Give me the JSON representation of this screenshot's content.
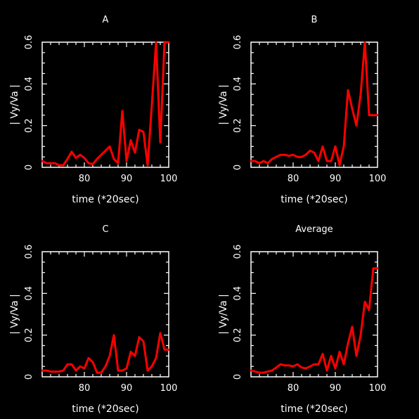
{
  "colors": {
    "background": "#000000",
    "axes": "#ffffff",
    "series": "#ff0000"
  },
  "chart_data": [
    {
      "type": "line",
      "title": "A",
      "xlabel": "time (*20sec)",
      "ylabel": "| Vy/Va |",
      "xlim": [
        70,
        100
      ],
      "ylim": [
        0,
        0.6
      ],
      "xticks": [
        80,
        90,
        100
      ],
      "yticks": [
        0,
        0.2,
        0.4,
        0.6
      ],
      "ytick_labels": [
        "0",
        "0.2",
        "0.4",
        "0.6"
      ],
      "grid": false,
      "series": [
        {
          "x": [
            70,
            71,
            72,
            73,
            74,
            75,
            76,
            77,
            78,
            79,
            80,
            81,
            82,
            83,
            84,
            85,
            86,
            87,
            88,
            89,
            90,
            91,
            92,
            93,
            94,
            95,
            96,
            97,
            98,
            99,
            100
          ],
          "values": [
            0.03,
            0.02,
            0.02,
            0.02,
            0.01,
            0.01,
            0.04,
            0.075,
            0.045,
            0.06,
            0.045,
            0.02,
            0.015,
            0.04,
            0.06,
            0.08,
            0.1,
            0.04,
            0.02,
            0.27,
            0.03,
            0.13,
            0.07,
            0.18,
            0.17,
            0.01,
            0.3,
            0.6,
            0.12,
            0.6,
            0.6
          ]
        }
      ]
    },
    {
      "type": "line",
      "title": "B",
      "xlabel": "time (*20sec)",
      "ylabel": "| Vy/Va |",
      "xlim": [
        70,
        100
      ],
      "ylim": [
        0,
        0.6
      ],
      "xticks": [
        80,
        90,
        100
      ],
      "yticks": [
        0,
        0.2,
        0.4,
        0.6
      ],
      "ytick_labels": [
        "0",
        "0.2",
        "0.4",
        "0.6"
      ],
      "grid": false,
      "series": [
        {
          "x": [
            70,
            71,
            72,
            73,
            74,
            75,
            76,
            77,
            78,
            79,
            80,
            81,
            82,
            83,
            84,
            85,
            86,
            87,
            88,
            89,
            90,
            91,
            92,
            93,
            94,
            95,
            96,
            97,
            98,
            99,
            100
          ],
          "values": [
            0.03,
            0.03,
            0.02,
            0.03,
            0.02,
            0.04,
            0.05,
            0.06,
            0.06,
            0.055,
            0.06,
            0.05,
            0.05,
            0.06,
            0.08,
            0.07,
            0.03,
            0.1,
            0.03,
            0.03,
            0.1,
            0.01,
            0.1,
            0.37,
            0.28,
            0.2,
            0.35,
            0.6,
            0.25,
            0.25,
            0.25
          ]
        }
      ]
    },
    {
      "type": "line",
      "title": "C",
      "xlabel": "time (*20sec)",
      "ylabel": "| Vy/Va |",
      "xlim": [
        70,
        100
      ],
      "ylim": [
        0,
        0.6
      ],
      "xticks": [
        80,
        90,
        100
      ],
      "yticks": [
        0,
        0.2,
        0.4,
        0.6
      ],
      "ytick_labels": [
        "0",
        "0.2",
        "0.4",
        "0.6"
      ],
      "grid": false,
      "series": [
        {
          "x": [
            70,
            71,
            72,
            73,
            74,
            75,
            76,
            77,
            78,
            79,
            80,
            81,
            82,
            83,
            84,
            85,
            86,
            87,
            88,
            89,
            90,
            91,
            92,
            93,
            94,
            95,
            96,
            97,
            98,
            99,
            100
          ],
          "values": [
            0.03,
            0.03,
            0.025,
            0.025,
            0.025,
            0.03,
            0.06,
            0.06,
            0.03,
            0.05,
            0.04,
            0.09,
            0.07,
            0.02,
            0.02,
            0.05,
            0.1,
            0.2,
            0.03,
            0.03,
            0.04,
            0.12,
            0.1,
            0.19,
            0.17,
            0.03,
            0.05,
            0.09,
            0.21,
            0.13,
            0.13
          ]
        }
      ]
    },
    {
      "type": "line",
      "title": "Average",
      "xlabel": "time (*20sec)",
      "ylabel": "| Vy/Va |",
      "xlim": [
        70,
        100
      ],
      "ylim": [
        0,
        0.6
      ],
      "xticks": [
        80,
        90,
        100
      ],
      "yticks": [
        0,
        0.2,
        0.4,
        0.6
      ],
      "ytick_labels": [
        "0",
        "0.2",
        "0.4",
        "0.6"
      ],
      "grid": false,
      "series": [
        {
          "x": [
            70,
            71,
            72,
            73,
            74,
            75,
            76,
            77,
            78,
            79,
            80,
            81,
            82,
            83,
            84,
            85,
            86,
            87,
            88,
            89,
            90,
            91,
            92,
            93,
            94,
            95,
            96,
            97,
            98,
            99,
            100
          ],
          "values": [
            0.03,
            0.025,
            0.02,
            0.02,
            0.025,
            0.03,
            0.045,
            0.06,
            0.055,
            0.055,
            0.05,
            0.06,
            0.045,
            0.04,
            0.05,
            0.06,
            0.06,
            0.11,
            0.03,
            0.1,
            0.04,
            0.12,
            0.06,
            0.16,
            0.24,
            0.1,
            0.2,
            0.36,
            0.32,
            0.52,
            0.52
          ]
        }
      ]
    }
  ]
}
